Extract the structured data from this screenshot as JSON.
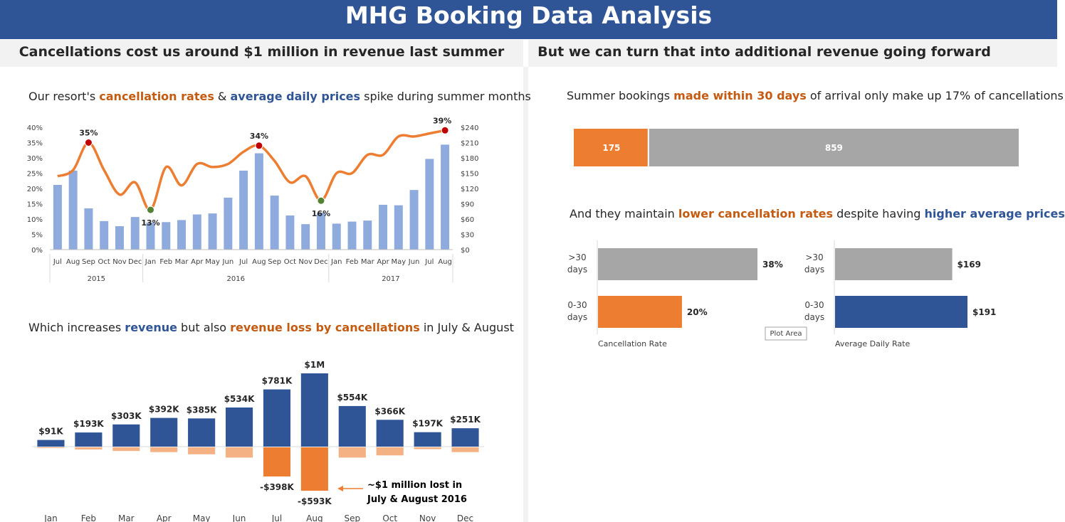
{
  "header": {
    "title": "MHG Booking Data Analysis"
  },
  "left_panel": {
    "title": "Cancellations cost us around $1 million in revenue last summer"
  },
  "right_panel": {
    "title": "But we can turn that into additional revenue going forward"
  },
  "colors": {
    "orange": "#ED7D31",
    "dark_orange": "#C55A11",
    "blue": "#2F5597",
    "light_blue": "#8FAADC",
    "light_orange": "#F4B183",
    "grey": "#A6A6A6",
    "red_marker": "#C00000",
    "green_marker": "#548235"
  },
  "sentences": {
    "s1": {
      "pre": "Our resort's ",
      "a": "cancellation rates",
      "mid": " & ",
      "b": "average daily prices",
      "post": " spike during summer months"
    },
    "s2": {
      "pre": "Which increases ",
      "a": "revenue",
      "mid": " but also ",
      "b": "revenue loss by cancellations",
      "post": " in July & August"
    },
    "s3": {
      "pre": "Summer bookings ",
      "a": "made within 30 days",
      "post": " of arrival only make up 17% of cancellations"
    },
    "s4": {
      "pre": "And they maintain ",
      "a": "lower cancellation rates",
      "mid": " despite having ",
      "b": "higher average prices"
    }
  },
  "chart_data": [
    {
      "type": "bar",
      "title": "",
      "categories": [
        "Jul",
        "Aug",
        "Sep",
        "Oct",
        "Nov",
        "Dec",
        "Jan",
        "Feb",
        "Mar",
        "Apr",
        "May",
        "Jun",
        "Jul",
        "Aug",
        "Sep",
        "Oct",
        "Nov",
        "Dec",
        "Jan",
        "Feb",
        "Mar",
        "Apr",
        "May",
        "Jun",
        "Jul",
        "Aug"
      ],
      "groups": [
        {
          "label": "2015",
          "count": 6
        },
        {
          "label": "2016",
          "count": 12
        },
        {
          "label": "2017",
          "count": 8
        }
      ],
      "series": [
        {
          "values": [
            127,
            155,
            81,
            56,
            46,
            64,
            53,
            54,
            58,
            69,
            71,
            102,
            155,
            189,
            106,
            67,
            50,
            72,
            51,
            55,
            57,
            88,
            87,
            117,
            178,
            206
          ]
        },
        {
          "values": [
            0.24,
            0.26,
            0.35,
            0.26,
            0.18,
            0.22,
            0.13,
            0.27,
            0.21,
            0.28,
            0.27,
            0.28,
            0.32,
            0.34,
            0.29,
            0.22,
            0.24,
            0.16,
            0.25,
            0.25,
            0.31,
            0.31,
            0.37,
            0.37,
            0.38,
            0.39
          ]
        }
      ],
      "ylim_left": [
        0,
        0.4
      ],
      "yticks_left": [
        "0%",
        "5%",
        "10%",
        "15%",
        "20%",
        "25%",
        "30%",
        "35%",
        "40%"
      ],
      "ylim_right": [
        0,
        240
      ],
      "yticks_right": [
        "$0",
        "$30",
        "$60",
        "$90",
        "$120",
        "$150",
        "$180",
        "$210",
        "$240"
      ],
      "annotations": [
        {
          "index": 2,
          "label": "35%",
          "marker": "red"
        },
        {
          "index": 6,
          "label": "13%",
          "marker": "green"
        },
        {
          "index": 13,
          "label": "34%",
          "marker": "red"
        },
        {
          "index": 17,
          "label": "16%",
          "marker": "green"
        },
        {
          "index": 25,
          "label": "39%",
          "marker": "red"
        }
      ]
    },
    {
      "type": "bar",
      "title": "",
      "categories": [
        "Jan",
        "Feb",
        "Mar",
        "Apr",
        "May",
        "Jun",
        "Jul",
        "Aug",
        "Sep",
        "Oct",
        "Nov",
        "Dec"
      ],
      "series": [
        {
          "values": [
            91,
            193,
            303,
            392,
            385,
            534,
            781,
            1000,
            554,
            366,
            197,
            251
          ],
          "labels": [
            "$91K",
            "$193K",
            "$303K",
            "$392K",
            "$385K",
            "$534K",
            "$781K",
            "$1M",
            "$554K",
            "$366K",
            "$197K",
            "$251K"
          ]
        },
        {
          "values": [
            -10,
            -30,
            -50,
            -65,
            -95,
            -140,
            -398,
            -593,
            -140,
            -110,
            -25,
            -65
          ],
          "labels": [
            "",
            "",
            "",
            "",
            "",
            "",
            "-$398K",
            "-$593K",
            "",
            "",
            "",
            ""
          ]
        }
      ],
      "annotations": [
        {
          "text": "~$1 million lost in",
          "text2": "July & August 2016"
        }
      ]
    },
    {
      "type": "bar",
      "title": "",
      "orientation": "horizontal-stacked",
      "values": [
        175,
        859
      ],
      "labels": [
        "175",
        "859"
      ]
    },
    {
      "type": "bar",
      "title": "",
      "xlabel": "Cancellation Rate",
      "categories": [
        ">30 days",
        "0-30 days"
      ],
      "values": [
        0.38,
        0.2
      ],
      "labels": [
        "38%",
        "20%"
      ]
    },
    {
      "type": "bar",
      "title": "",
      "xlabel": "Average Daily Rate",
      "categories": [
        ">30 days",
        "0-30 days"
      ],
      "values": [
        169,
        191
      ],
      "labels": [
        "$169",
        "$191"
      ]
    }
  ],
  "tooltip": {
    "text": "Plot Area"
  }
}
